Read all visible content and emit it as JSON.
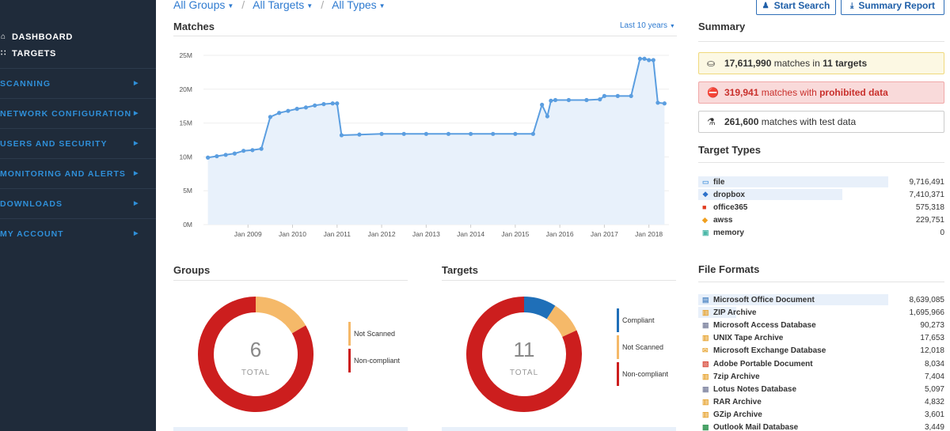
{
  "sidebar": {
    "top_items": [
      {
        "label": "DASHBOARD",
        "icon": "home-icon"
      },
      {
        "label": "TARGETS",
        "icon": "targets-icon"
      }
    ],
    "nav_items": [
      {
        "label": "SCANNING"
      },
      {
        "label": "NETWORK CONFIGURATION"
      },
      {
        "label": "USERS AND SECURITY"
      },
      {
        "label": "MONITORING AND ALERTS"
      },
      {
        "label": "DOWNLOADS"
      },
      {
        "label": "MY ACCOUNT"
      }
    ]
  },
  "filters": {
    "groups": "All Groups",
    "targets": "All Targets",
    "types": "All Types"
  },
  "actions": {
    "start_search": "Start Search",
    "summary_report": "Summary Report"
  },
  "matches": {
    "title": "Matches",
    "period": "Last 10 years"
  },
  "chart_data": {
    "type": "area",
    "title": "Matches",
    "xlabel": "",
    "ylabel": "",
    "ylim": [
      0,
      25000000
    ],
    "yticks": [
      "0M",
      "5M",
      "10M",
      "15M",
      "20M",
      "25M"
    ],
    "xticks": [
      "Jan 2009",
      "Jan 2010",
      "Jan 2011",
      "Jan 2012",
      "Jan 2013",
      "Jan 2014",
      "Jan 2015",
      "Jan 2016",
      "Jan 2017",
      "Jan 2018"
    ],
    "grid": true,
    "color": "#5b9ee0",
    "fill": "#e8f1fb",
    "series": [
      {
        "x": [
          2008.1,
          2008.3,
          2008.5,
          2008.7,
          2008.9,
          2009.1,
          2009.3,
          2009.5,
          2009.7,
          2009.9,
          2010.1,
          2010.3,
          2010.5,
          2010.7,
          2010.9,
          2011.0,
          2011.1,
          2011.5,
          2012.0,
          2012.5,
          2013.0,
          2013.5,
          2014.0,
          2014.5,
          2015.0,
          2015.4,
          2015.6,
          2015.72,
          2015.8,
          2015.9,
          2016.2,
          2016.6,
          2016.9,
          2017.0,
          2017.3,
          2017.6,
          2017.8,
          2017.9,
          2018.0,
          2018.1,
          2018.2,
          2018.35
        ],
        "y": [
          9900000,
          10100000,
          10300000,
          10500000,
          10900000,
          11000000,
          11200000,
          15900000,
          16500000,
          16800000,
          17100000,
          17300000,
          17600000,
          17800000,
          17900000,
          17900000,
          13200000,
          13300000,
          13400000,
          13400000,
          13400000,
          13400000,
          13400000,
          13400000,
          13400000,
          13400000,
          17700000,
          16000000,
          18300000,
          18400000,
          18400000,
          18400000,
          18500000,
          19000000,
          19000000,
          19000000,
          24500000,
          24500000,
          24300000,
          24300000,
          18000000,
          17900000
        ]
      }
    ]
  },
  "summary": {
    "title": "Summary",
    "rows": [
      {
        "icon": "coins-icon",
        "count": "17,611,990",
        "text1": " matches in ",
        "count2": "11 targets",
        "text2": "",
        "bg": "#fcf8e3",
        "border": "#f0d97c",
        "color": "#333"
      },
      {
        "icon": "prohibited-icon",
        "count": "319,941",
        "text1": " matches with ",
        "count2": "prohibited data",
        "text2": "",
        "bg": "#f9dada",
        "border": "#f0a8a8",
        "color": "#c9302c"
      },
      {
        "icon": "test-icon",
        "count": "261,600",
        "text1": " matches with ",
        "count2": "",
        "text2": "test data",
        "bg": "#ffffff",
        "border": "#cccccc",
        "color": "#333"
      }
    ]
  },
  "target_types": {
    "title": "Target Types",
    "items": [
      {
        "name": "file",
        "value": "9,716,491",
        "icon": "file-icon",
        "icon_color": "#5b9ee0",
        "bar": 1.0
      },
      {
        "name": "dropbox",
        "value": "7,410,371",
        "icon": "dropbox-icon",
        "icon_color": "#2a6fc9",
        "bar": 0.76
      },
      {
        "name": "office365",
        "value": "575,318",
        "icon": "office365-icon",
        "icon_color": "#e03a1e",
        "bar": 0.0
      },
      {
        "name": "awss",
        "value": "229,751",
        "icon": "aws-icon",
        "icon_color": "#f0a020",
        "bar": 0.0
      },
      {
        "name": "memory",
        "value": "0",
        "icon": "memory-icon",
        "icon_color": "#4bb8a8",
        "bar": 0.0
      }
    ]
  },
  "file_formats": {
    "title": "File Formats",
    "items": [
      {
        "name": "Microsoft Office Document",
        "value": "8,639,085",
        "icon": "document-icon",
        "icon_color": "#5b8fc9",
        "bar": 1.0
      },
      {
        "name": "ZIP Archive",
        "value": "1,695,966",
        "icon": "archive-icon",
        "icon_color": "#e8a83a",
        "bar": 0.2
      },
      {
        "name": "Microsoft Access Database",
        "value": "90,273",
        "icon": "database-icon",
        "icon_color": "#8a8fa8",
        "bar": 0.0
      },
      {
        "name": "UNIX Tape Archive",
        "value": "17,653",
        "icon": "archive-icon",
        "icon_color": "#e8a83a",
        "bar": 0.0
      },
      {
        "name": "Microsoft Exchange Database",
        "value": "12,018",
        "icon": "mail-icon",
        "icon_color": "#e8a83a",
        "bar": 0.0
      },
      {
        "name": "Adobe Portable Document",
        "value": "8,034",
        "icon": "pdf-icon",
        "icon_color": "#d84a3a",
        "bar": 0.0
      },
      {
        "name": "7zip Archive",
        "value": "7,404",
        "icon": "archive-icon",
        "icon_color": "#e8a83a",
        "bar": 0.0
      },
      {
        "name": "Lotus Notes Database",
        "value": "5,097",
        "icon": "database-icon",
        "icon_color": "#8a8fa8",
        "bar": 0.0
      },
      {
        "name": "RAR Archive",
        "value": "4,832",
        "icon": "archive-icon",
        "icon_color": "#e8a83a",
        "bar": 0.0
      },
      {
        "name": "GZip Archive",
        "value": "3,601",
        "icon": "archive-icon",
        "icon_color": "#e8a83a",
        "bar": 0.0
      },
      {
        "name": "Outlook Mail Database",
        "value": "3,449",
        "icon": "outlook-icon",
        "icon_color": "#3a9a5a",
        "bar": 0.0
      }
    ]
  },
  "groups": {
    "title": "Groups",
    "total": "6",
    "total_label": "TOTAL",
    "segments": [
      {
        "label": "Not Scanned",
        "value": 1,
        "color": "#f5b969"
      },
      {
        "label": "Non-compliant",
        "value": 5,
        "color": "#cc1e1e"
      }
    ]
  },
  "targets": {
    "title": "Targets",
    "total": "11",
    "total_label": "TOTAL",
    "segments": [
      {
        "label": "Compliant",
        "value": 1,
        "color": "#1f6fb8"
      },
      {
        "label": "Not Scanned",
        "value": 1,
        "color": "#f5b969"
      },
      {
        "label": "Non-compliant",
        "value": 9,
        "color": "#cc1e1e"
      }
    ]
  }
}
